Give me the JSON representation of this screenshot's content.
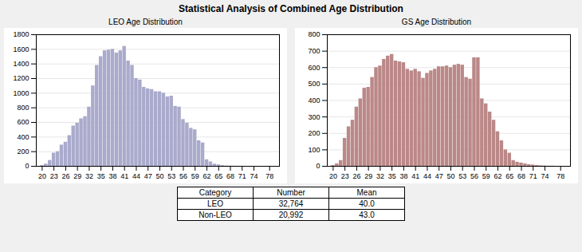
{
  "title": "Statistical Analysis of Combined Age Distribution",
  "chart_data": [
    {
      "type": "bar",
      "title": "LEO Age Distribution",
      "x": [
        20,
        21,
        22,
        23,
        24,
        25,
        26,
        27,
        28,
        29,
        30,
        31,
        32,
        33,
        34,
        35,
        36,
        37,
        38,
        39,
        40,
        41,
        42,
        43,
        44,
        45,
        46,
        47,
        48,
        49,
        50,
        51,
        52,
        53,
        54,
        55,
        56,
        57,
        58,
        59,
        60,
        61,
        62,
        63,
        64,
        65,
        66,
        67,
        68,
        69,
        70,
        71,
        72,
        73,
        74,
        75,
        76,
        77,
        78
      ],
      "values": [
        10,
        30,
        80,
        180,
        200,
        290,
        330,
        420,
        550,
        590,
        650,
        680,
        810,
        1100,
        1380,
        1500,
        1580,
        1590,
        1600,
        1550,
        1580,
        1640,
        1440,
        1380,
        1200,
        1180,
        1080,
        1060,
        1050,
        1020,
        1020,
        1000,
        950,
        960,
        820,
        810,
        640,
        590,
        520,
        500,
        350,
        320,
        90,
        60,
        30,
        20,
        10,
        5,
        3,
        2,
        1,
        1,
        0,
        0,
        0,
        0,
        0,
        0,
        0
      ],
      "color": "#aaaacc",
      "xlim": [
        18.5,
        80.5
      ],
      "xticks": [
        20,
        23,
        26,
        29,
        32,
        35,
        38,
        41,
        44,
        47,
        50,
        53,
        56,
        59,
        62,
        65,
        68,
        71,
        74,
        78
      ],
      "ylim": [
        0,
        1800
      ],
      "yticks": [
        0,
        200,
        400,
        600,
        800,
        1000,
        1200,
        1400,
        1600,
        1800
      ],
      "grid": true
    },
    {
      "type": "bar",
      "title": "GS Age Distribution",
      "x": [
        20,
        21,
        22,
        23,
        24,
        25,
        26,
        27,
        28,
        29,
        30,
        31,
        32,
        33,
        34,
        35,
        36,
        37,
        38,
        39,
        40,
        41,
        42,
        43,
        44,
        45,
        46,
        47,
        48,
        49,
        50,
        51,
        52,
        53,
        54,
        55,
        56,
        57,
        58,
        59,
        60,
        61,
        62,
        63,
        64,
        65,
        66,
        67,
        68,
        69,
        70,
        71,
        72,
        73,
        74,
        75,
        76,
        77,
        78
      ],
      "values": [
        5,
        15,
        35,
        170,
        240,
        280,
        360,
        410,
        475,
        480,
        540,
        600,
        610,
        650,
        670,
        680,
        640,
        635,
        630,
        590,
        580,
        590,
        575,
        535,
        565,
        580,
        590,
        605,
        605,
        610,
        600,
        615,
        620,
        615,
        540,
        530,
        660,
        660,
        410,
        380,
        330,
        280,
        210,
        155,
        100,
        80,
        35,
        25,
        20,
        15,
        10,
        8,
        5,
        3,
        2,
        1,
        1,
        0,
        0
      ],
      "color": "#bb8888",
      "xlim": [
        18.5,
        80.5
      ],
      "xticks": [
        20,
        23,
        26,
        29,
        32,
        35,
        38,
        41,
        44,
        47,
        50,
        53,
        56,
        59,
        62,
        65,
        68,
        71,
        74,
        78
      ],
      "ylim": [
        0,
        800
      ],
      "yticks": [
        0,
        100,
        200,
        300,
        400,
        500,
        600,
        700,
        800
      ],
      "grid": true
    }
  ],
  "table": [
    [
      "Category",
      "Number",
      "Mean"
    ],
    [
      "LEO",
      "32,764",
      "40.0"
    ],
    [
      "Non-LEO",
      "20,992",
      "43.0"
    ]
  ]
}
